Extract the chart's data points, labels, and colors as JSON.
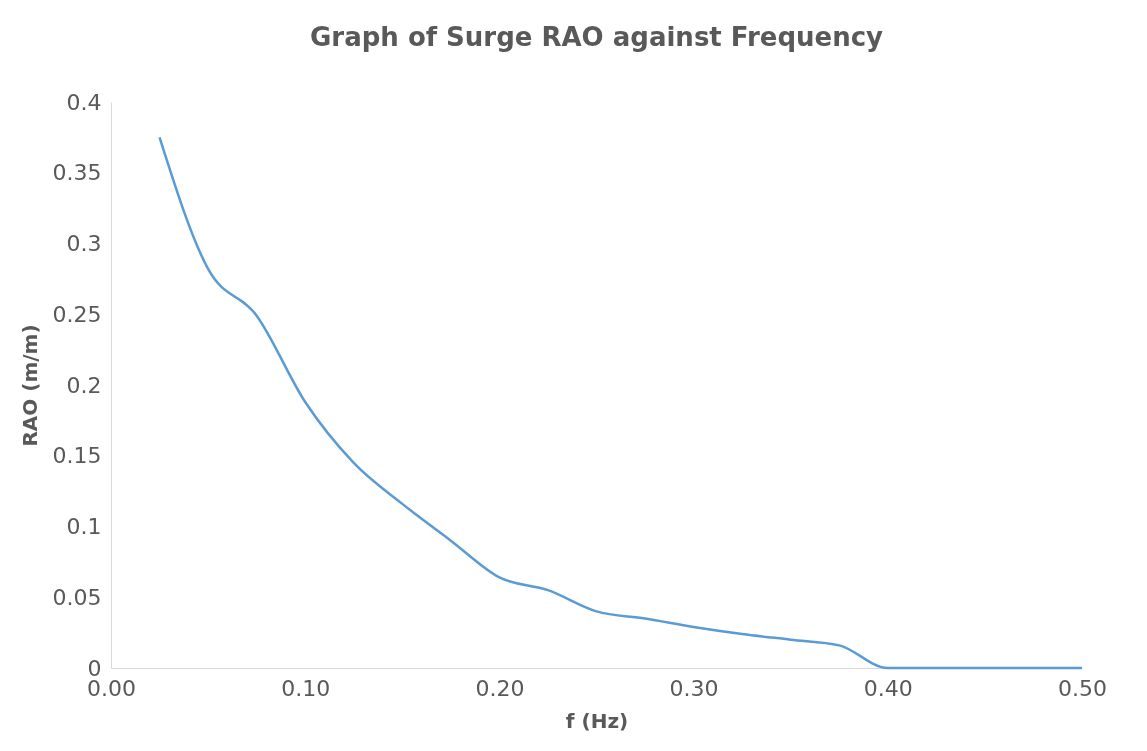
{
  "chart_data": {
    "type": "line",
    "title": "Graph of Surge RAO against Frequency",
    "xlabel": "f (Hz)",
    "ylabel": "RAO (m/m)",
    "x": [
      0.025,
      0.05,
      0.075,
      0.1,
      0.125,
      0.15,
      0.175,
      0.2,
      0.225,
      0.25,
      0.275,
      0.3,
      0.325,
      0.35,
      0.375,
      0.4,
      0.425,
      0.45,
      0.475,
      0.5
    ],
    "series": [
      {
        "color": "#5b9bd5",
        "values": [
          0.375,
          0.282,
          0.249,
          0.188,
          0.145,
          0.116,
          0.09,
          0.064,
          0.055,
          0.04,
          0.035,
          0.029,
          0.024,
          0.02,
          0.016,
          0,
          0,
          0,
          0,
          0
        ]
      }
    ],
    "xlim": [
      0,
      0.5
    ],
    "xticks": [
      {
        "value": 0,
        "label": "0.00"
      },
      {
        "value": 0.1,
        "label": "0.10"
      },
      {
        "value": 0.2,
        "label": "0.20"
      },
      {
        "value": 0.3,
        "label": "0.30"
      },
      {
        "value": 0.4,
        "label": "0.40"
      },
      {
        "value": 0.5,
        "label": "0.50"
      }
    ],
    "ylim": [
      0,
      0.4
    ],
    "yticks": [
      0,
      0.05,
      0.1,
      0.15,
      0.2,
      0.25,
      0.3,
      0.35,
      0.4
    ],
    "grid": false,
    "legend": false,
    "marker": "none",
    "line_style": "solid"
  }
}
